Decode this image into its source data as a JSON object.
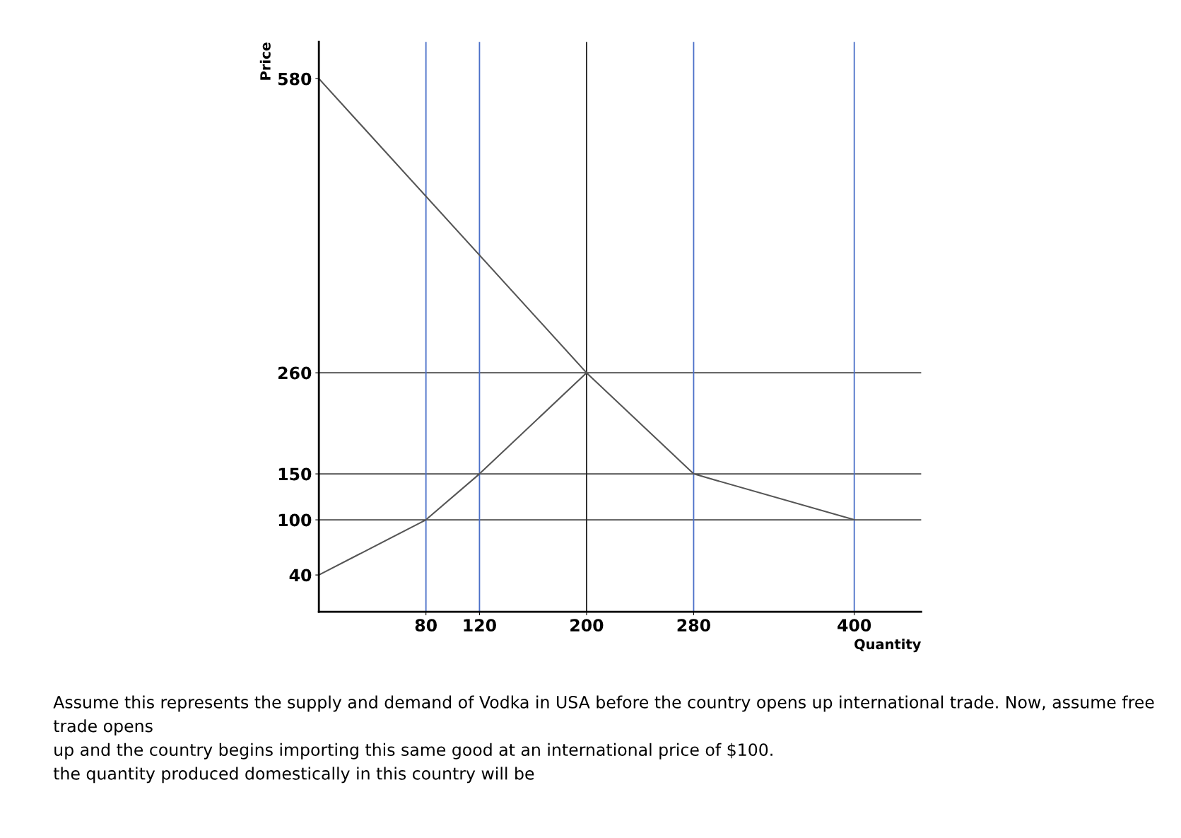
{
  "chart_data": {
    "type": "line",
    "xlabel": "Quantity",
    "ylabel": "Price",
    "series": [
      {
        "x": [
          0,
          80,
          120,
          200
        ],
        "values": [
          40,
          100,
          150,
          260
        ],
        "color": "#555555"
      },
      {
        "x": [
          0,
          200,
          280,
          400
        ],
        "values": [
          580,
          260,
          150,
          100
        ],
        "color": "#555555"
      }
    ],
    "xlim": [
      0,
      450
    ],
    "ylim": [
      0,
      620
    ],
    "xticks": [
      80,
      120,
      200,
      280,
      400
    ],
    "yticks": [
      40,
      100,
      150,
      260,
      580
    ],
    "ref_lines": [
      {
        "axis": "y",
        "value": 260,
        "color": "#444444"
      },
      {
        "axis": "y",
        "value": 150,
        "color": "#444444"
      },
      {
        "axis": "y",
        "value": 100,
        "color": "#444444"
      },
      {
        "axis": "x",
        "value": 80,
        "color": "#4a6fc8"
      },
      {
        "axis": "x",
        "value": 120,
        "color": "#4a6fc8"
      },
      {
        "axis": "x",
        "value": 200,
        "color": "#222222"
      },
      {
        "axis": "x",
        "value": 280,
        "color": "#4a6fc8"
      },
      {
        "axis": "x",
        "value": 400,
        "color": "#4a6fc8"
      }
    ],
    "grid": false,
    "marker": "none",
    "line_style": "solid",
    "annotations": [
      "Assume this represents the supply and demand of Vodka in USA before the country opens up international trade. Now, assume free trade opens\nup and the country begins importing this same good at an international price of $100.\nthe quantity produced domestically in this country will be"
    ]
  }
}
